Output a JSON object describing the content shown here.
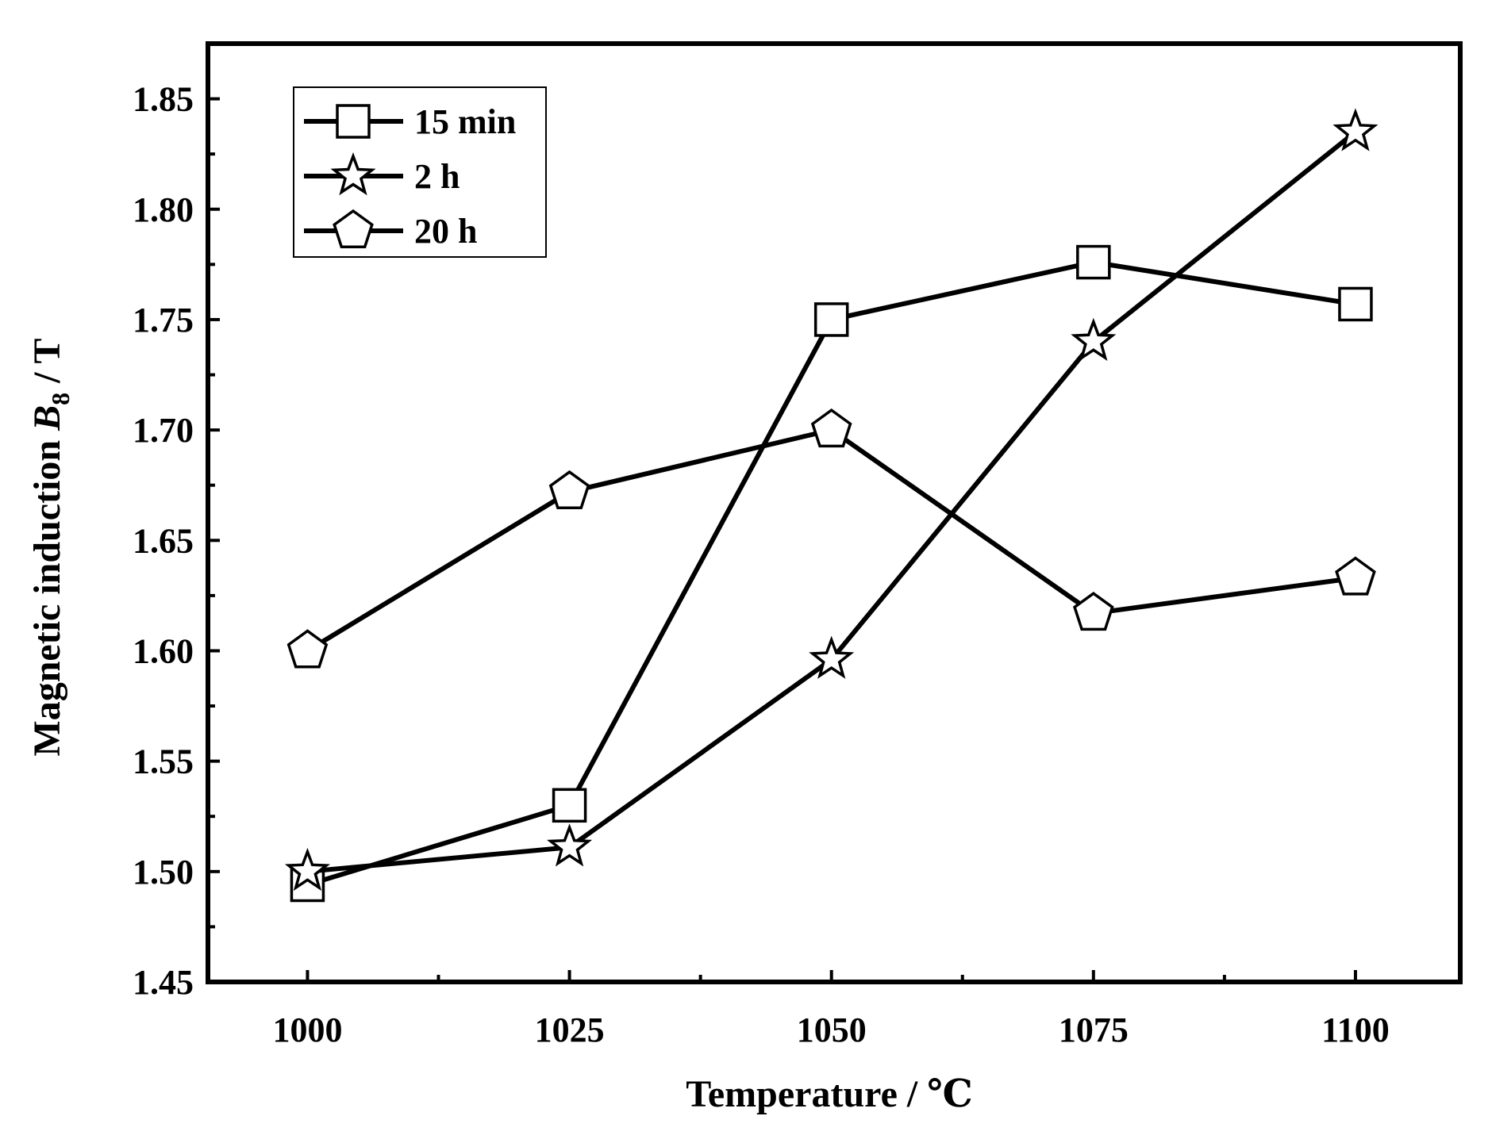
{
  "chart_data": {
    "type": "line",
    "xlabel": "Temperature / ℃",
    "ylabel_main": "Magnetic induction ",
    "ylabel_var": "B",
    "ylabel_sub": "8",
    "ylabel_unit": " / T",
    "x": [
      1000,
      1025,
      1050,
      1075,
      1100
    ],
    "x_tick_labels": [
      "1000",
      "1025",
      "1050",
      "1075",
      "1100"
    ],
    "xlim": [
      990.5,
      1110
    ],
    "ylim": [
      1.45,
      1.875
    ],
    "y_ticks": [
      1.45,
      1.5,
      1.55,
      1.6,
      1.65,
      1.7,
      1.75,
      1.8,
      1.85
    ],
    "y_tick_labels": [
      "1.45",
      "1.50",
      "1.55",
      "1.60",
      "1.65",
      "1.70",
      "1.75",
      "1.80",
      "1.85"
    ],
    "legend_position": "top-left",
    "grid": false,
    "series": [
      {
        "name": "15 min",
        "marker": "square",
        "values": [
          1.494,
          1.53,
          1.75,
          1.776,
          1.757
        ]
      },
      {
        "name": "2 h",
        "marker": "star",
        "values": [
          1.5,
          1.511,
          1.596,
          1.74,
          1.835
        ]
      },
      {
        "name": "20 h",
        "marker": "pentagon",
        "values": [
          1.6,
          1.672,
          1.7,
          1.617,
          1.633
        ]
      }
    ]
  }
}
